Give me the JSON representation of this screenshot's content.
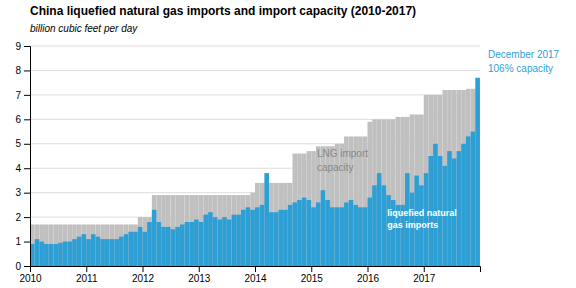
{
  "chart_data": {
    "type": "bar",
    "title": "China liquefied natural gas imports and import capacity (2010-2017)",
    "subtitle": "billion cubic feet per day",
    "x": [
      2010,
      2010.0833333333,
      2010.1666666667,
      2010.25,
      2010.3333333333,
      2010.4166666667,
      2010.5,
      2010.5833333333,
      2010.6666666667,
      2010.75,
      2010.8333333333,
      2010.9166666667,
      2011,
      2011.0833333333,
      2011.1666666667,
      2011.25,
      2011.3333333333,
      2011.4166666667,
      2011.5,
      2011.5833333333,
      2011.6666666667,
      2011.75,
      2011.8333333333,
      2011.9166666667,
      2012,
      2012.0833333333,
      2012.1666666667,
      2012.25,
      2012.3333333333,
      2012.4166666667,
      2012.5,
      2012.5833333333,
      2012.6666666667,
      2012.75,
      2012.8333333333,
      2012.9166666667,
      2013,
      2013.0833333333,
      2013.1666666667,
      2013.25,
      2013.3333333333,
      2013.4166666667,
      2013.5,
      2013.5833333333,
      2013.6666666667,
      2013.75,
      2013.8333333333,
      2013.9166666667,
      2014,
      2014.0833333333,
      2014.1666666667,
      2014.25,
      2014.3333333333,
      2014.4166666667,
      2014.5,
      2014.5833333333,
      2014.6666666667,
      2014.75,
      2014.8333333333,
      2014.9166666667,
      2015,
      2015.0833333333,
      2015.1666666667,
      2015.25,
      2015.3333333333,
      2015.4166666667,
      2015.5,
      2015.5833333333,
      2015.6666666667,
      2015.75,
      2015.8333333333,
      2015.9166666667,
      2016,
      2016.0833333333,
      2016.1666666667,
      2016.25,
      2016.3333333333,
      2016.4166666667,
      2016.5,
      2016.5833333333,
      2016.6666666667,
      2016.75,
      2016.8333333333,
      2016.9166666667,
      2017,
      2017.0833333333,
      2017.1666666667,
      2017.25,
      2017.3333333333,
      2017.4166666667,
      2017.5,
      2017.5833333333,
      2017.6666666667,
      2017.75,
      2017.8333333333,
      2017.9166666667
    ],
    "series": [
      {
        "color": "#c0c0c0",
        "values": [
          1.7,
          1.7,
          1.7,
          1.7,
          1.7,
          1.7,
          1.7,
          1.7,
          1.7,
          1.7,
          1.7,
          1.7,
          1.7,
          1.7,
          1.7,
          1.7,
          1.7,
          1.7,
          1.7,
          1.7,
          1.7,
          1.7,
          1.7,
          2.0,
          2.0,
          2.0,
          2.9,
          2.9,
          2.9,
          2.9,
          2.9,
          2.9,
          2.9,
          2.9,
          2.9,
          2.9,
          2.9,
          2.9,
          2.9,
          2.9,
          2.9,
          2.9,
          2.9,
          2.9,
          2.9,
          2.9,
          2.9,
          3.0,
          3.4,
          3.4,
          3.4,
          3.4,
          3.4,
          3.4,
          3.4,
          3.4,
          4.6,
          4.6,
          4.6,
          4.7,
          4.7,
          4.9,
          4.9,
          4.9,
          4.9,
          5.0,
          5.0,
          5.3,
          5.3,
          5.3,
          5.3,
          5.3,
          5.9,
          6.0,
          6.0,
          6.0,
          6.0,
          6.0,
          6.1,
          6.1,
          6.1,
          6.2,
          6.2,
          6.2,
          7.0,
          7.0,
          7.0,
          7.0,
          7.2,
          7.2,
          7.2,
          7.2,
          7.2,
          7.25,
          7.25,
          7.27
        ]
      },
      {
        "color": "#2e9fd4",
        "values": [
          0.9,
          1.1,
          1.0,
          0.9,
          0.9,
          0.9,
          0.95,
          1.0,
          1.0,
          1.1,
          1.2,
          1.3,
          1.1,
          1.3,
          1.2,
          1.1,
          1.1,
          1.1,
          1.1,
          1.2,
          1.3,
          1.4,
          1.4,
          1.6,
          1.4,
          1.8,
          2.3,
          1.8,
          1.6,
          1.6,
          1.5,
          1.6,
          1.7,
          1.8,
          1.8,
          1.9,
          1.8,
          2.1,
          2.2,
          2.0,
          1.9,
          2.0,
          1.9,
          2.1,
          2.1,
          2.3,
          2.4,
          2.3,
          2.4,
          2.5,
          3.8,
          2.2,
          2.2,
          2.3,
          2.3,
          2.5,
          2.6,
          2.7,
          2.8,
          2.7,
          2.4,
          2.6,
          3.1,
          2.7,
          2.4,
          2.4,
          2.4,
          2.6,
          2.7,
          2.5,
          2.4,
          2.4,
          2.8,
          3.3,
          3.8,
          3.3,
          2.9,
          2.7,
          2.5,
          2.5,
          3.8,
          3.0,
          3.7,
          3.3,
          3.8,
          4.5,
          5.0,
          4.5,
          4.1,
          4.7,
          4.4,
          4.7,
          5.0,
          5.3,
          5.5,
          7.7
        ]
      }
    ],
    "annotations": [
      {
        "text": [
          "December 2017",
          "106% capacity"
        ],
        "color": "#2e9fd4"
      },
      {
        "text": [
          "LNG import",
          "capacity"
        ],
        "color": "#888888"
      },
      {
        "text": [
          "liquefied natural",
          "gas imports"
        ],
        "color": "#ffffff"
      }
    ],
    "xlim": [
      2010,
      2018.0
    ],
    "xticks": [
      2010,
      2011,
      2012,
      2013,
      2014,
      2015,
      2016,
      2017
    ],
    "ylim": [
      0,
      9
    ],
    "yticks": [
      0,
      1,
      2,
      3,
      4,
      5,
      6,
      7,
      8,
      9
    ],
    "grid": true
  }
}
